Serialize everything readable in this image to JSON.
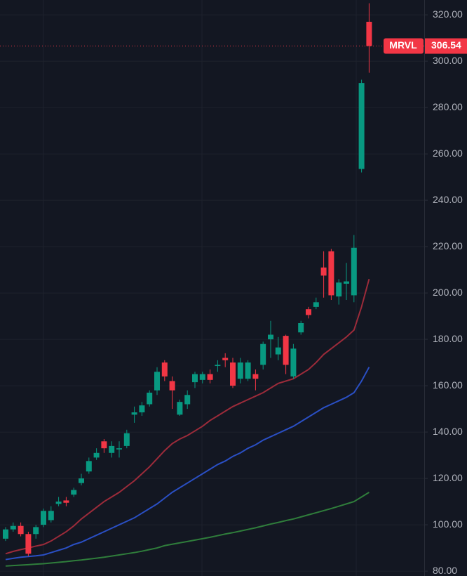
{
  "chart_data": {
    "type": "candlestick",
    "symbol": "MRVL",
    "last_price": 306.54,
    "ylim": [
      77.9,
      326.4
    ],
    "yticks": [
      {
        "value": 80,
        "label": "80.00"
      },
      {
        "value": 100,
        "label": "100.00"
      },
      {
        "value": 120,
        "label": "120.00"
      },
      {
        "value": 140,
        "label": "140.00"
      },
      {
        "value": 160,
        "label": "160.00"
      },
      {
        "value": 180,
        "label": "180.00"
      },
      {
        "value": 200,
        "label": "200.00"
      },
      {
        "value": 220,
        "label": "220.00"
      },
      {
        "value": 240,
        "label": "240.00"
      },
      {
        "value": 260,
        "label": "260.00"
      },
      {
        "value": 280,
        "label": "280.00"
      },
      {
        "value": 300,
        "label": "300.00"
      },
      {
        "value": 320,
        "label": "320.00"
      }
    ],
    "grid": true,
    "up_color": "#089981",
    "down_color": "#f23645",
    "open": [
      94,
      98,
      99.5,
      96,
      96,
      100,
      102,
      109,
      110.5,
      113,
      118,
      123,
      129,
      136,
      131,
      132.5,
      134,
      147.5,
      148.5,
      152,
      158,
      170,
      162,
      147.5,
      152,
      161.5,
      162.5,
      165,
      168.5,
      172,
      170,
      163,
      163,
      165,
      169,
      180,
      173.5,
      181.5,
      164,
      183,
      193,
      194,
      211,
      218,
      198.5,
      204,
      199,
      253.5,
      317
    ],
    "high": [
      99,
      101,
      101,
      97,
      100,
      107,
      108,
      112,
      112,
      116,
      122,
      129,
      133,
      137,
      136,
      136,
      141,
      151,
      153,
      158,
      168,
      171,
      164,
      154,
      158,
      166,
      166,
      167,
      171,
      174,
      172,
      172,
      171,
      167,
      179,
      188,
      181,
      182,
      178,
      188,
      194,
      198,
      218,
      219,
      206,
      213,
      225,
      292,
      325
    ],
    "low": [
      93,
      97,
      95,
      86.5,
      94,
      99,
      101,
      108,
      108,
      112,
      117,
      122,
      128,
      131,
      129,
      129,
      133,
      144,
      147,
      151,
      156,
      162,
      150,
      147,
      150,
      159,
      161,
      161,
      166,
      168,
      159,
      161,
      162,
      158,
      167,
      172,
      171,
      165,
      163,
      182,
      189,
      193,
      198,
      197,
      195,
      197,
      196,
      252,
      295
    ],
    "close": [
      98,
      99.5,
      96,
      87.5,
      99,
      106,
      106,
      110,
      109.5,
      115,
      120,
      127.5,
      131,
      133,
      134,
      133,
      139.5,
      148.5,
      151.5,
      157,
      166,
      164,
      158,
      153,
      156,
      165,
      165,
      162.5,
      169,
      171,
      160,
      170,
      170,
      163,
      178,
      182,
      176.5,
      169,
      176,
      187,
      190.5,
      196,
      207.5,
      199,
      204.5,
      205,
      219.5,
      290.6,
      306.54
    ],
    "series": [
      {
        "color": "#9c2b3a",
        "values": [
          87.5,
          88.5,
          89.3,
          90,
          90.8,
          91.5,
          93,
          95,
          97,
          99.5,
          102.5,
          105,
          107.5,
          110,
          112,
          114,
          116.5,
          119,
          122,
          125,
          128.5,
          132,
          135,
          137,
          138.5,
          140.5,
          142.5,
          145,
          147,
          149,
          151,
          152.5,
          154,
          155.5,
          157,
          159,
          161,
          162,
          163,
          165,
          167,
          170,
          173.5,
          176,
          178.5,
          181,
          184,
          194,
          206
        ]
      },
      {
        "color": "#2a4fc4",
        "values": [
          85,
          85.5,
          86,
          86.3,
          86.6,
          87,
          88,
          89,
          90,
          91.5,
          92.5,
          94,
          95.5,
          97,
          98.5,
          100,
          101.5,
          103,
          105,
          107,
          109,
          111.5,
          114,
          116,
          118,
          120,
          122,
          124,
          126,
          127.5,
          129.5,
          131,
          133,
          134.5,
          136.5,
          138,
          139.5,
          141,
          142.5,
          144.5,
          146.5,
          148.5,
          150.5,
          152,
          153.5,
          155,
          157,
          162,
          168
        ]
      },
      {
        "color": "#2f7d3b",
        "values": [
          82.2,
          82.4,
          82.6,
          82.8,
          83,
          83.2,
          83.5,
          83.8,
          84.1,
          84.5,
          84.8,
          85.2,
          85.6,
          86,
          86.5,
          87,
          87.5,
          88,
          88.6,
          89.3,
          90,
          91,
          91.6,
          92.2,
          92.8,
          93.4,
          94,
          94.6,
          95.3,
          96,
          96.6,
          97.3,
          98,
          98.7,
          99.5,
          100.3,
          101,
          101.8,
          102.5,
          103.4,
          104.3,
          105.2,
          106.1,
          107,
          108,
          109,
          110,
          112,
          114
        ]
      }
    ]
  }
}
